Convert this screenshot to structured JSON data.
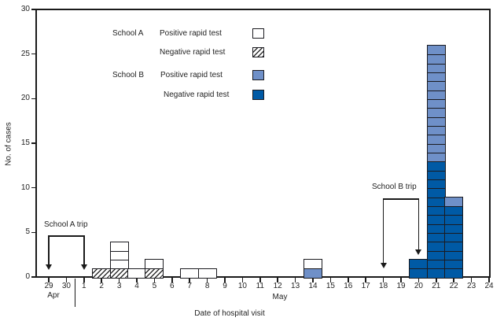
{
  "y_axis": {
    "label": "No. of cases",
    "ticks": [
      "0",
      "5",
      "10",
      "15",
      "20",
      "25",
      "30"
    ],
    "max": 30
  },
  "x_axis": {
    "label": "Date of hospital visit",
    "ticks": [
      "29",
      "30",
      "1",
      "2",
      "3",
      "4",
      "5",
      "6",
      "7",
      "8",
      "9",
      "10",
      "11",
      "12",
      "13",
      "14",
      "15",
      "16",
      "17",
      "18",
      "19",
      "20",
      "21",
      "22",
      "23",
      "24"
    ],
    "month_apr": "Apr",
    "month_may": "May"
  },
  "legend": {
    "school_a": "School A",
    "a_pos": "Positive rapid test",
    "a_neg": "Negative rapid test",
    "school_b": "School B",
    "b_pos": "Positive rapid test",
    "b_neg": "Negative rapid test"
  },
  "annotations": {
    "school_a_trip": "School A trip",
    "school_b_trip": "School B trip"
  },
  "colors": {
    "a_pos": "#FFFFFF",
    "a_neg": "#FFFFFF",
    "b_pos": "#6F90C8",
    "b_neg": "#005AA5",
    "hatch_line": "#2E2E2E",
    "frame": "#1A1A1A"
  },
  "chart_data": {
    "type": "bar",
    "stacked": true,
    "style": "stacked unit cells, 1 cell = 1 case, black cell outlines",
    "title": "",
    "xlabel": "Date of hospital visit",
    "ylabel": "No. of cases",
    "ylim": [
      0,
      30
    ],
    "y_tick_step": 5,
    "grid": false,
    "legend_position": "top-left inside plot",
    "categories": [
      "Apr 29",
      "Apr 30",
      "May 1",
      "May 2",
      "May 3",
      "May 4",
      "May 5",
      "May 6",
      "May 7",
      "May 8",
      "May 9",
      "May 10",
      "May 11",
      "May 12",
      "May 13",
      "May 14",
      "May 15",
      "May 16",
      "May 17",
      "May 18",
      "May 19",
      "May 20",
      "May 21",
      "May 22",
      "May 23",
      "May 24"
    ],
    "stack_order": [
      "b_neg",
      "b_pos",
      "a_neg",
      "a_pos"
    ],
    "series": [
      {
        "key": "a_pos",
        "name": "School A Positive rapid test",
        "fill": "white",
        "values": [
          0,
          0,
          0,
          0,
          3,
          1,
          1,
          0,
          1,
          1,
          0,
          0,
          0,
          0,
          0,
          1,
          0,
          0,
          0,
          0,
          0,
          0,
          0,
          0,
          0,
          0
        ]
      },
      {
        "key": "a_neg",
        "name": "School A Negative rapid test",
        "fill": "white with black diagonal hatch",
        "values": [
          0,
          0,
          0,
          1,
          1,
          0,
          1,
          0,
          0,
          0,
          0,
          0,
          0,
          0,
          0,
          0,
          0,
          0,
          0,
          0,
          0,
          0,
          0,
          0,
          0,
          0
        ]
      },
      {
        "key": "b_pos",
        "name": "School B Positive rapid test",
        "fill": "light blue",
        "values": [
          0,
          0,
          0,
          0,
          0,
          0,
          0,
          0,
          0,
          0,
          0,
          0,
          0,
          0,
          0,
          1,
          0,
          0,
          0,
          0,
          0,
          0,
          13,
          1,
          0,
          0
        ]
      },
      {
        "key": "b_neg",
        "name": "School B Negative rapid test",
        "fill": "dark blue",
        "values": [
          0,
          0,
          0,
          0,
          0,
          0,
          0,
          0,
          0,
          0,
          0,
          0,
          0,
          0,
          0,
          0,
          0,
          0,
          0,
          0,
          0,
          2,
          13,
          8,
          0,
          0
        ]
      }
    ],
    "daily_totals": [
      0,
      0,
      0,
      1,
      4,
      1,
      2,
      0,
      1,
      1,
      0,
      0,
      0,
      0,
      0,
      2,
      0,
      0,
      0,
      0,
      0,
      2,
      26,
      9,
      0,
      0
    ],
    "annotations": [
      {
        "text": "School A trip",
        "span": [
          "Apr 29",
          "May 1"
        ],
        "shape": "bracket with two down arrows"
      },
      {
        "text": "School B trip",
        "span": [
          "May 18",
          "May 20"
        ],
        "shape": "bracket with two down arrows"
      }
    ]
  }
}
